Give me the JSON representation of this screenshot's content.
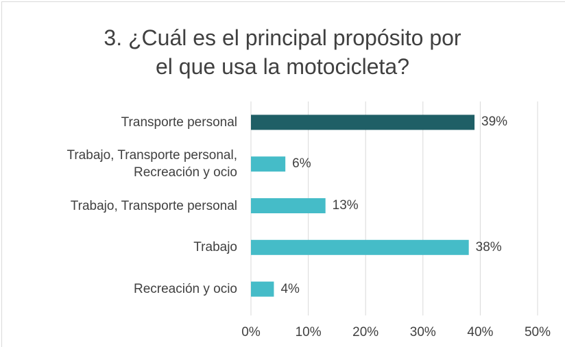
{
  "chart_data": {
    "type": "bar",
    "orientation": "horizontal",
    "title": "3. ¿Cuál es el principal propósito por\nel que usa la motocicleta?",
    "categories": [
      "Transporte personal",
      "Trabajo, Transporte personal,\nRecreación y ocio",
      "Trabajo, Transporte personal",
      "Trabajo",
      "Recreación y ocio"
    ],
    "values": [
      39,
      6,
      13,
      38,
      4
    ],
    "value_labels": [
      "39%",
      "6%",
      "13%",
      "38%",
      "4%"
    ],
    "colors": [
      "#1f5f66",
      "#45bcc8",
      "#45bcc8",
      "#45bcc8",
      "#45bcc8"
    ],
    "xlim": [
      0,
      50
    ],
    "xticks": [
      {
        "value": 0,
        "label": "0%"
      },
      {
        "value": 10,
        "label": "10%"
      },
      {
        "value": 20,
        "label": "20%"
      },
      {
        "value": 30,
        "label": "30%"
      },
      {
        "value": 40,
        "label": "40%"
      },
      {
        "value": 50,
        "label": "50%"
      }
    ],
    "grid": true
  }
}
